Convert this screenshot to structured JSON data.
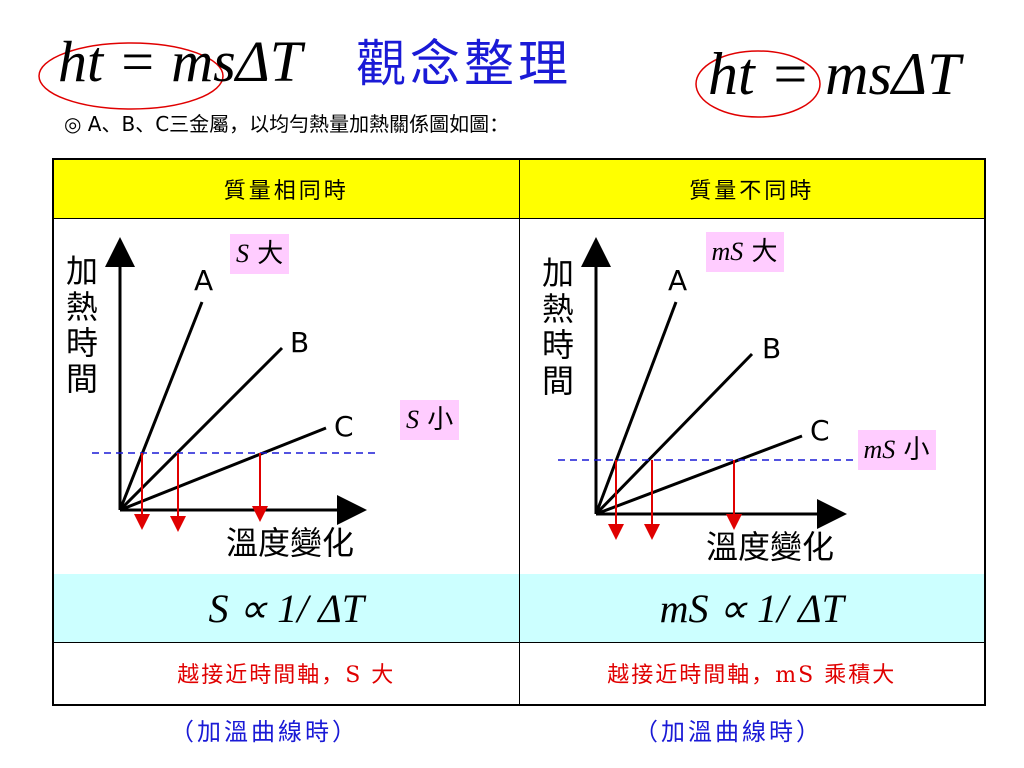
{
  "header": {
    "formula_left": "ht = msΔT",
    "title": "觀念整理",
    "formula_right": "ht = msΔT",
    "subtitle": "◎ A、B、C三金屬，以均勻熱量加熱關係圖如圖："
  },
  "table": {
    "headers": [
      "質量相同時",
      "質量不同時"
    ],
    "formulas": [
      "S ∝ 1/ ΔT",
      "mS ∝ 1/ ΔT"
    ],
    "notes": [
      "越接近時間軸，S 大",
      "越接近時間軸，mS 乘積大"
    ]
  },
  "captions": [
    "（加溫曲線時）",
    "（加溫曲線時）"
  ],
  "plot": {
    "y_label": "加熱時間",
    "x_label": "溫度變化",
    "lines": [
      "A",
      "B",
      "C"
    ]
  },
  "tags": {
    "left_big": {
      "var": "S",
      "word": "大"
    },
    "left_small": {
      "var": "S",
      "word": "小"
    },
    "right_big": {
      "var": "mS",
      "word": "大"
    },
    "right_small": {
      "var": "mS",
      "word": "小"
    }
  },
  "colors": {
    "title": "#1a1ad6",
    "header_bg": "#ffff00",
    "formula_bg": "#ccffff",
    "note_text": "#e00000",
    "tag_bg": "#ffccff",
    "dashed": "#1a1ad6",
    "arrow": "#e00000"
  }
}
